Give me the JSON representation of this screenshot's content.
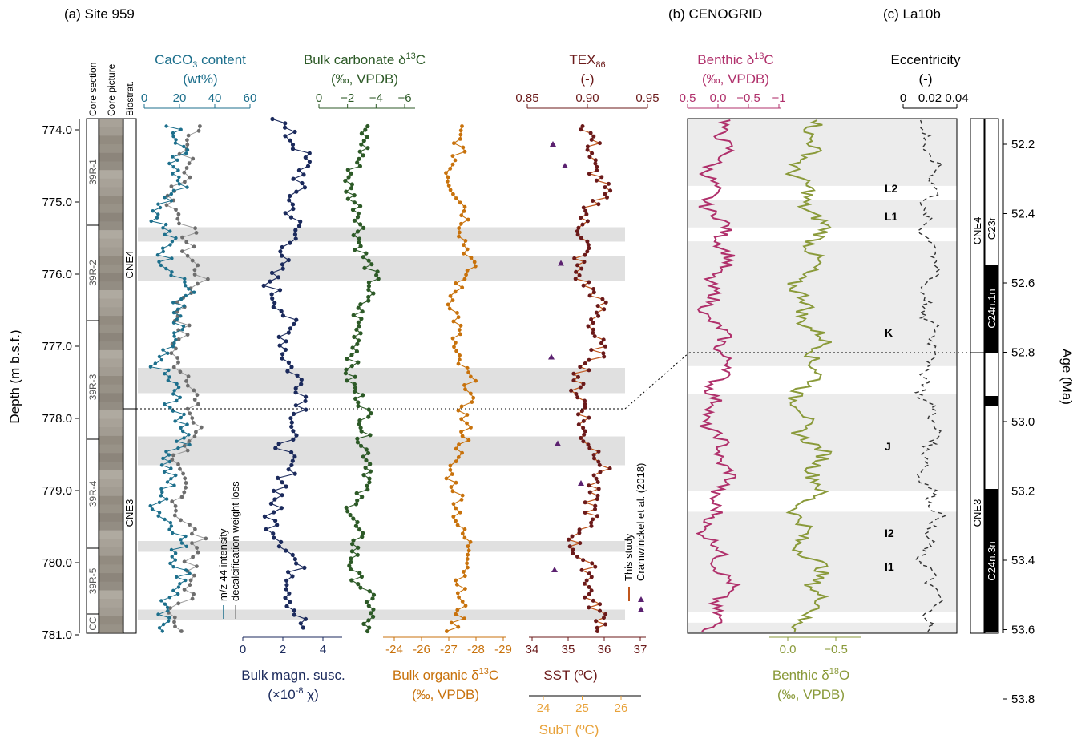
{
  "colors": {
    "caco3": "#1d6f8c",
    "caco3_gray": "#6e6e6e",
    "bulk_carb": "#2d5a27",
    "magn": "#1b2a5c",
    "org": "#c8720c",
    "subt": "#e8a23a",
    "tex": "#6b1a1a",
    "tex_line": "#c0561c",
    "cram": "#5b2170",
    "benthic_c": "#b0306b",
    "benthic_o": "#8a9a3a",
    "ecc": "#333333",
    "shade": "#d6d6d6"
  },
  "panels": {
    "a": "(a) Site 959",
    "b": "(b) CENOGRID",
    "c": "(c) La10b"
  },
  "strat": {
    "core_section": "Core section",
    "core_picture": "Core picture",
    "biostrat": "Biostrat.",
    "sections": [
      "39R-1",
      "39R-2",
      "39R-3",
      "39R-4",
      "39R-5",
      "CC"
    ],
    "zones": [
      "CNE4",
      "CNE3"
    ],
    "zones_right": [
      "CNE4",
      "CNE3"
    ],
    "chrons": [
      "C23r",
      "C24n.1n",
      "C24n.3n"
    ]
  },
  "labels": {
    "caco3_l1": "CaCO",
    "caco3_sub": "3",
    "caco3_l1b": " content",
    "caco3_l2": "(wt%)",
    "bulkc_l1": "Bulk carbonate δ",
    "bulkc_sup": "13",
    "bulkc_l1b": "C",
    "bulkc_l2": "(‰, VPDB)",
    "tex_l1": "TEX",
    "tex_sub": "86",
    "tex_l2": "(-)",
    "bc_l1": "Benthic δ",
    "bc_sup": "13",
    "bc_l1b": "C",
    "bc_l2": "(‰, VPDB)",
    "ecc_l1": "Eccentricity",
    "ecc_l2": "(-)",
    "magn_l1": "Bulk magn. susc.",
    "magn_l2a": "(×10",
    "magn_sup": "-8",
    "magn_l2b": " χ)",
    "org_l1": "Bulk organic δ",
    "org_sup": "13",
    "org_l1b": "C",
    "org_l2": "(‰, VPDB)",
    "sst": "SST (ºC)",
    "subt": "SubT (ºC)",
    "bo_l1": "Benthic δ",
    "bo_sup": "18",
    "bo_l1b": "O",
    "bo_l2": "(‰, VPDB)",
    "depth": "Depth (m b.s.f.)",
    "age": "Age (Ma)",
    "mz44": "m/z 44 intensity",
    "decalc": "decalcification weight loss",
    "this_study": "This study",
    "cram_ref": "Cramwinckel et al. (2018)"
  },
  "events": [
    "L2",
    "L1",
    "K",
    "J",
    "I2",
    "I1"
  ],
  "axes": {
    "depth_ticks": [
      "774.0",
      "775.0",
      "776.0",
      "777.0",
      "778.0",
      "779.0",
      "780.0",
      "781.0"
    ],
    "age_ticks": [
      "52.2",
      "52.4",
      "52.6",
      "52.8",
      "53.0",
      "53.2",
      "53.4",
      "53.6",
      "53.8"
    ],
    "caco3_ticks": [
      "0",
      "20",
      "40",
      "60"
    ],
    "bulkc_ticks": [
      "0",
      "−2",
      "−4",
      "−6"
    ],
    "tex_ticks": [
      "0.85",
      "0.90",
      "0.95"
    ],
    "bc_ticks": [
      "0.5",
      "0.0",
      "−0.5",
      "−1"
    ],
    "ecc_ticks": [
      "0",
      "0.02",
      "0.04"
    ],
    "magn_ticks": [
      "0",
      "2",
      "4"
    ],
    "org_ticks": [
      "-24",
      "-26",
      "-27",
      "-28",
      "-29"
    ],
    "sst_ticks": [
      "34",
      "35",
      "36",
      "37"
    ],
    "subt_ticks": [
      "24",
      "25",
      "26"
    ],
    "bo_ticks": [
      "0.0",
      "−0.5"
    ]
  },
  "chart_data": {
    "type": "line",
    "depth_range_mbsf": [
      773.9,
      781.0
    ],
    "age_range_ma": [
      52.1,
      53.9
    ],
    "shaded_depth_intervals_mbsf": [
      [
        775.35,
        775.55
      ],
      [
        775.75,
        776.1
      ],
      [
        777.3,
        777.65
      ],
      [
        778.25,
        778.65
      ],
      [
        779.7,
        779.85
      ],
      [
        780.65,
        780.8
      ]
    ],
    "shaded_age_intervals_ma": [
      [
        52.32,
        52.36
      ],
      [
        52.44,
        52.48
      ],
      [
        52.84,
        52.92
      ],
      [
        53.2,
        53.26
      ],
      [
        53.55,
        53.58
      ],
      [
        53.66,
        53.7
      ]
    ],
    "depth_age_tie_mbsf_ma": [
      777.85,
      52.92
    ]
  }
}
